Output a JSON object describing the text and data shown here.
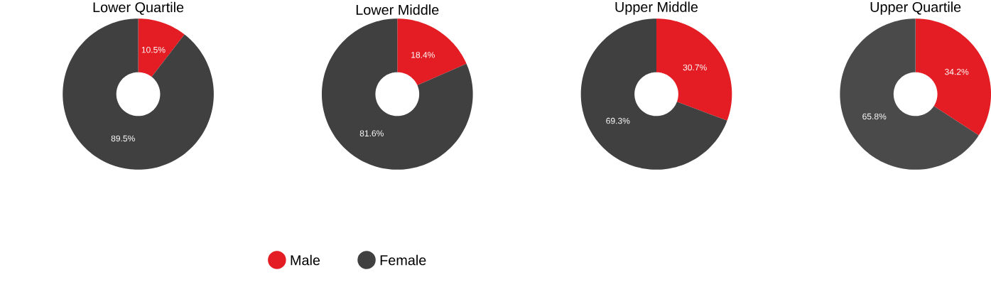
{
  "chart_data": [
    {
      "type": "donut",
      "title": "Lower Quartile",
      "categories": [
        "Male",
        "Female"
      ],
      "values": [
        10.5,
        89.5
      ],
      "value_labels": [
        "10.5%",
        "89.5%"
      ],
      "colors": [
        "#e31d23",
        "#404040"
      ],
      "legend": "bottom"
    },
    {
      "type": "donut",
      "title": "Lower Middle",
      "categories": [
        null,
        null
      ],
      "values": [
        18.4,
        81.6
      ],
      "value_labels": [
        "18.4%",
        "81.6%"
      ],
      "colors": [
        "#e31d23",
        "#404040"
      ]
    },
    {
      "type": "donut",
      "title": "Upper Middle",
      "categories": [
        null,
        null
      ],
      "values": [
        30.7,
        69.3
      ],
      "value_labels": [
        "30.7%",
        "69.3%"
      ],
      "colors": [
        "#e31d23",
        "#404040"
      ]
    },
    {
      "type": "donut",
      "title": "Upper Quartile",
      "categories": [
        null,
        null
      ],
      "values": [
        34.2,
        65.8
      ],
      "value_labels": [
        "34.2%",
        "65.8%"
      ],
      "colors": [
        "#e31d23",
        "#4a4a4a"
      ]
    }
  ]
}
